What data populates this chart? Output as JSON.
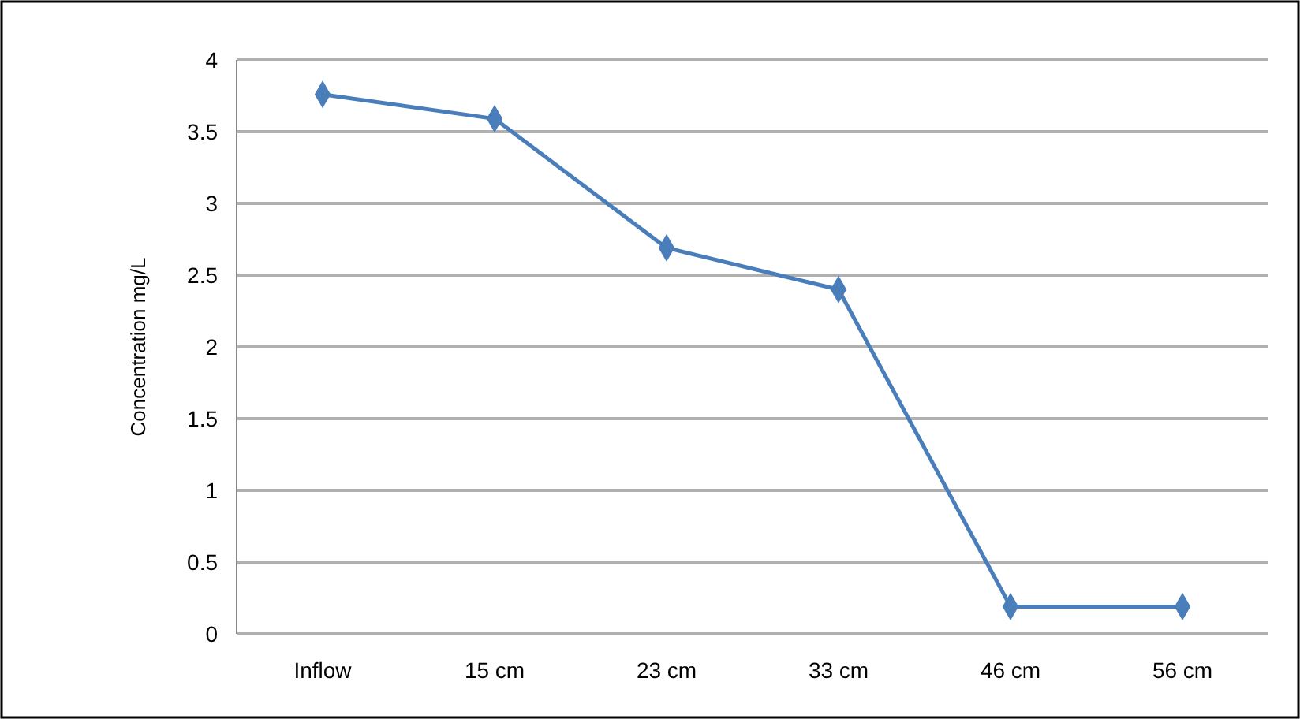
{
  "chart_data": {
    "type": "line",
    "ylabel": "Concentration mg/L",
    "categories": [
      "Inflow",
      "15 cm",
      "23 cm",
      "33 cm",
      "46 cm",
      "56 cm"
    ],
    "series": [
      {
        "color": "#4a7ebb",
        "values": [
          3.76,
          3.59,
          2.69,
          2.4,
          0.19,
          0.19
        ]
      }
    ],
    "ylim": [
      0,
      4
    ],
    "yticks": [
      0,
      0.5,
      1,
      1.5,
      2,
      2.5,
      3,
      3.5,
      4
    ],
    "grid": "y",
    "marker": "diamond",
    "line_style": "solid"
  }
}
